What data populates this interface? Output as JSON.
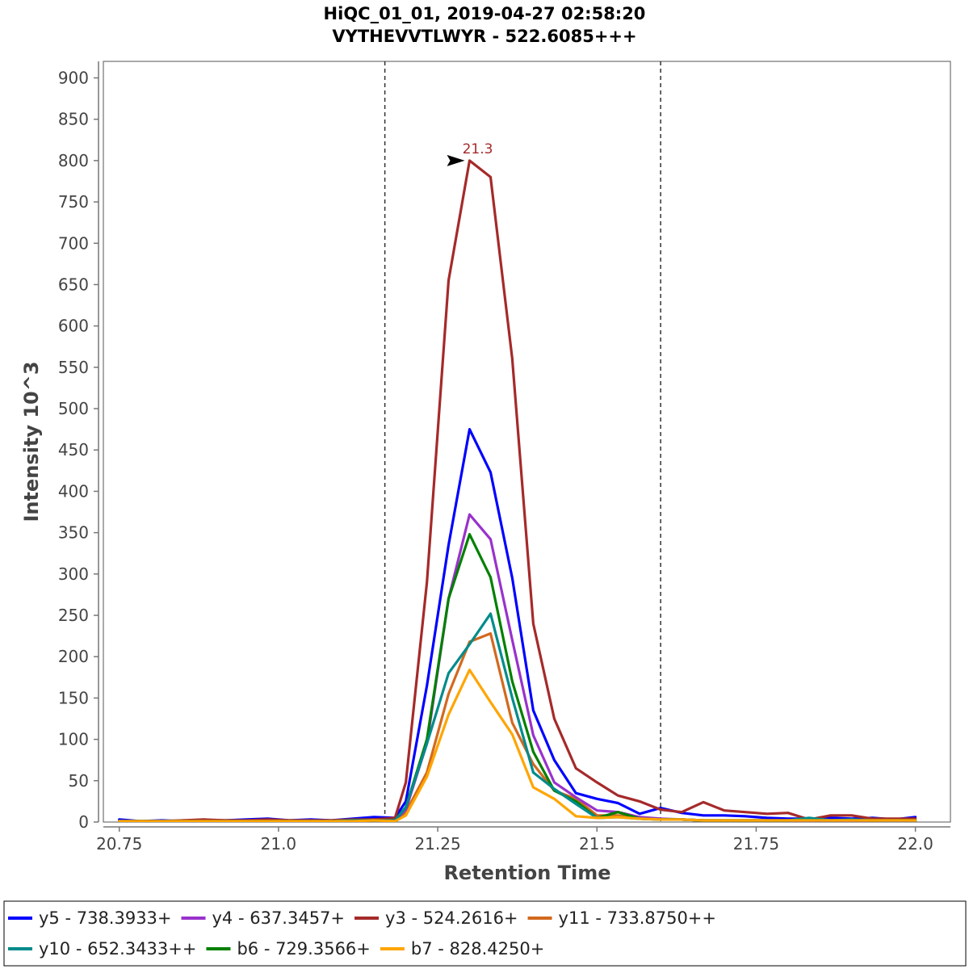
{
  "chart_data": {
    "type": "line",
    "title": "HiQC_01_01, 2019-04-27 02:58:20",
    "subtitle": "VYTHEVVTLWYR - 522.6085+++",
    "xlabel": "Retention Time",
    "ylabel": "Intensity 10^3",
    "xlim": [
      20.725,
      22.055
    ],
    "ylim": [
      0,
      920
    ],
    "xticks": [
      20.75,
      21.0,
      21.25,
      21.5,
      21.75,
      22.0
    ],
    "xtick_labels": [
      "20.75",
      "21.0",
      "21.25",
      "21.5",
      "21.75",
      "22.0"
    ],
    "yticks": [
      0,
      50,
      100,
      150,
      200,
      250,
      300,
      350,
      400,
      450,
      500,
      550,
      600,
      650,
      700,
      750,
      800,
      850,
      900
    ],
    "ytick_labels": [
      "0",
      "50",
      "100",
      "150",
      "200",
      "250",
      "300",
      "350",
      "400",
      "450",
      "500",
      "550",
      "600",
      "650",
      "700",
      "750",
      "800",
      "850",
      "900"
    ],
    "integration_bounds": [
      21.167,
      21.6
    ],
    "peak_annotation": {
      "x": 21.3,
      "y": 800,
      "label": "21.3",
      "color": "#a52a2a"
    },
    "legend_position": "bottom",
    "x": [
      20.75,
      20.783,
      20.817,
      20.85,
      20.883,
      20.917,
      20.95,
      20.983,
      21.017,
      21.05,
      21.083,
      21.117,
      21.15,
      21.183,
      21.2,
      21.233,
      21.267,
      21.3,
      21.333,
      21.367,
      21.4,
      21.433,
      21.467,
      21.5,
      21.533,
      21.567,
      21.6,
      21.633,
      21.667,
      21.7,
      21.733,
      21.767,
      21.8,
      21.833,
      21.867,
      21.9,
      21.933,
      21.967,
      22.0
    ],
    "series": [
      {
        "name": "y5 - 738.3933+",
        "color": "#0000ff",
        "values": [
          3,
          1,
          2,
          1,
          2,
          2,
          3,
          4,
          2,
          3,
          2,
          4,
          6,
          5,
          25,
          165,
          335,
          475,
          423,
          295,
          135,
          75,
          35,
          28,
          23,
          10,
          17,
          11,
          8,
          8,
          7,
          5,
          4,
          4,
          5,
          4,
          5,
          3,
          6
        ]
      },
      {
        "name": "y4 - 637.3457+",
        "color": "#9932cc",
        "values": [
          1,
          1,
          1,
          1,
          1,
          1,
          1,
          2,
          1,
          1,
          1,
          2,
          3,
          2,
          15,
          95,
          270,
          372,
          342,
          220,
          105,
          48,
          30,
          14,
          12,
          6,
          4,
          3,
          2,
          2,
          2,
          2,
          2,
          1,
          2,
          1,
          2,
          1,
          2
        ]
      },
      {
        "name": "y3 - 524.2616+",
        "color": "#a52a2a",
        "values": [
          1,
          1,
          1,
          2,
          3,
          2,
          2,
          3,
          2,
          2,
          2,
          3,
          3,
          5,
          48,
          290,
          655,
          800,
          780,
          560,
          240,
          125,
          65,
          48,
          32,
          25,
          15,
          12,
          24,
          14,
          12,
          10,
          11,
          3,
          8,
          8,
          4,
          4,
          4
        ]
      },
      {
        "name": "y11 - 733.8750++",
        "color": "#d2691e",
        "values": [
          1,
          1,
          1,
          2,
          2,
          2,
          2,
          2,
          2,
          2,
          2,
          3,
          3,
          2,
          12,
          60,
          155,
          218,
          228,
          120,
          70,
          38,
          28,
          8,
          8,
          5,
          3,
          3,
          2,
          2,
          2,
          2,
          2,
          2,
          2,
          2,
          2,
          2,
          2
        ]
      },
      {
        "name": "y10 - 652.3433++",
        "color": "#008b8b",
        "values": [
          1,
          1,
          1,
          1,
          1,
          1,
          1,
          1,
          1,
          1,
          1,
          2,
          2,
          2,
          18,
          95,
          180,
          215,
          252,
          150,
          60,
          40,
          22,
          5,
          6,
          4,
          3,
          3,
          2,
          2,
          2,
          2,
          2,
          5,
          2,
          3,
          2,
          2,
          2
        ]
      },
      {
        "name": "b6 - 729.3566+",
        "color": "#008000",
        "values": [
          1,
          1,
          1,
          1,
          1,
          1,
          1,
          1,
          1,
          1,
          1,
          2,
          2,
          2,
          18,
          100,
          270,
          348,
          296,
          170,
          85,
          38,
          25,
          5,
          12,
          4,
          3,
          3,
          2,
          2,
          2,
          2,
          2,
          2,
          2,
          2,
          2,
          2,
          2
        ]
      },
      {
        "name": "b7 - 828.4250+",
        "color": "#ffa500",
        "values": [
          1,
          1,
          1,
          1,
          1,
          1,
          1,
          1,
          1,
          1,
          1,
          1,
          2,
          1,
          8,
          55,
          130,
          184,
          145,
          106,
          42,
          28,
          7,
          5,
          6,
          4,
          3,
          3,
          2,
          2,
          2,
          2,
          2,
          2,
          2,
          2,
          2,
          2,
          2
        ]
      }
    ]
  }
}
